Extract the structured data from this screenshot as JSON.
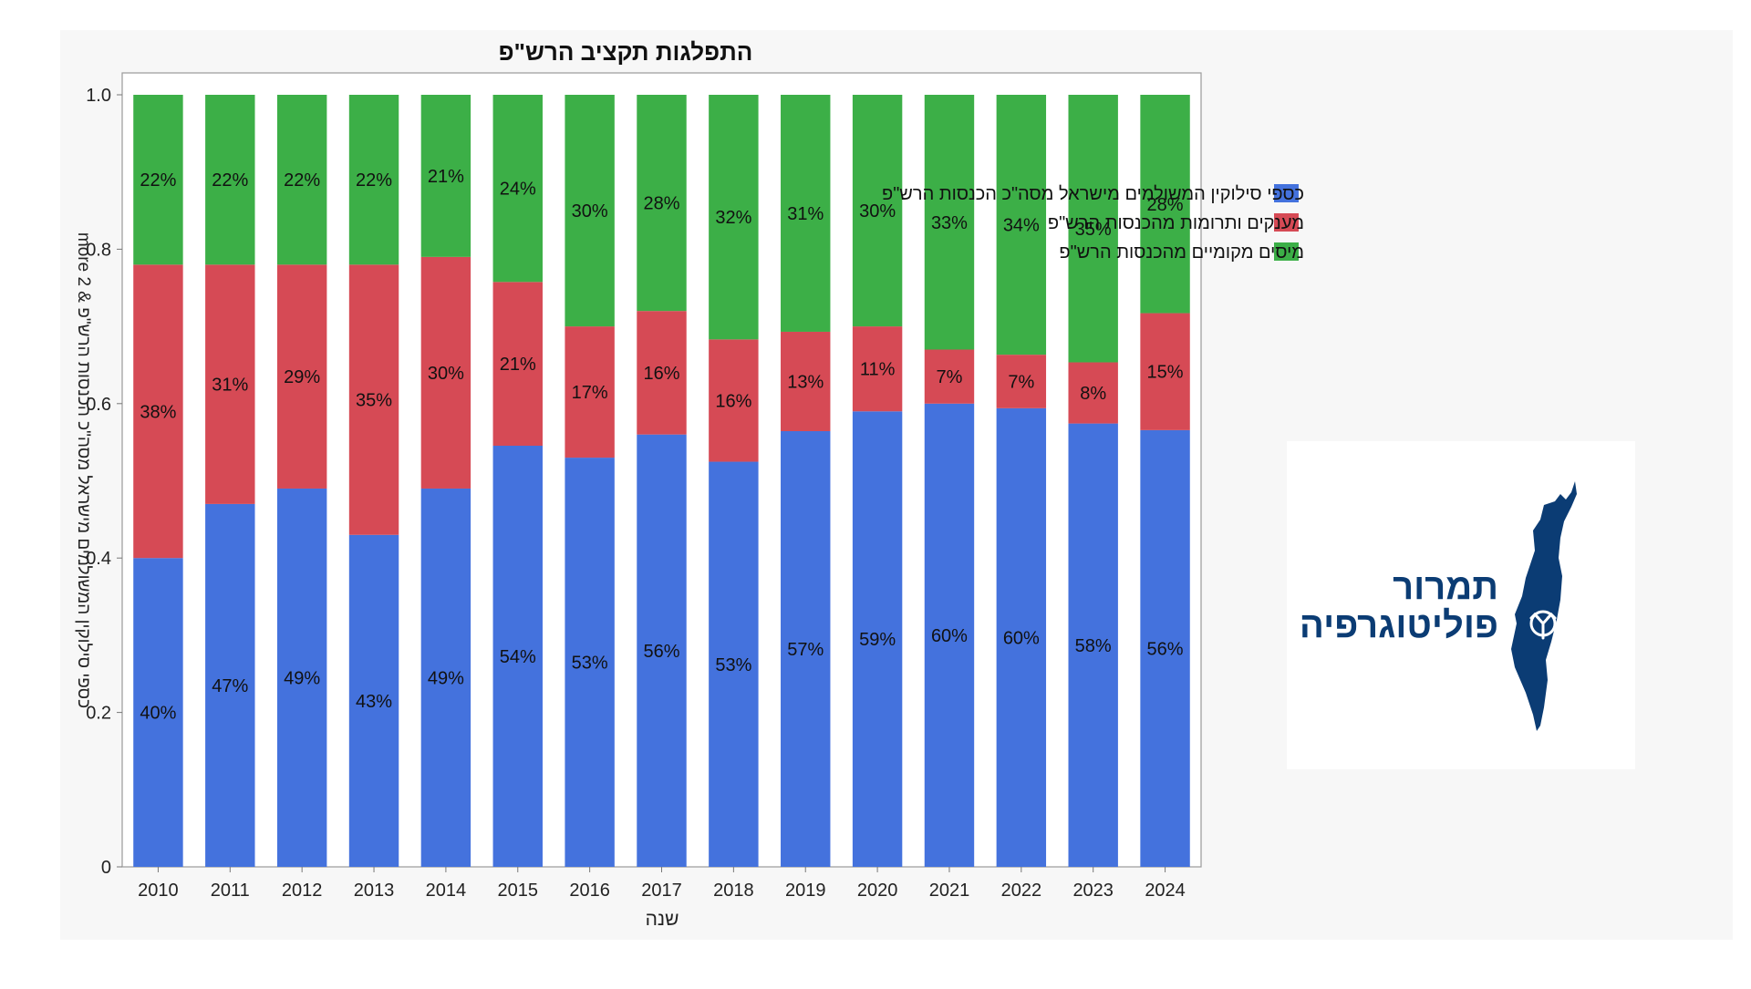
{
  "chart_data": {
    "type": "bar",
    "stacked": true,
    "normalized": true,
    "title": "התפלגות תקציב הרש\"פ",
    "xlabel": "שנה",
    "ylabel": "כספי סילוקין המשולמים מישראל מסה\"כ הכנסות הרש\"פ & 2 more",
    "ylim": [
      0,
      1.0
    ],
    "yticks": [
      "0",
      "0.2",
      "0.4",
      "0.6",
      "0.8",
      "1.0"
    ],
    "ytick_values": [
      0,
      0.2,
      0.4,
      0.6,
      0.8,
      1.0
    ],
    "categories": [
      "2010",
      "2011",
      "2012",
      "2013",
      "2014",
      "2015",
      "2016",
      "2017",
      "2018",
      "2019",
      "2020",
      "2021",
      "2022",
      "2023",
      "2024"
    ],
    "series": [
      {
        "name": "כספי סילוקין המשולמים מישראל מסה\"כ הכנסות הרש\"פ",
        "color": "#4472dd",
        "values": [
          0.4,
          0.47,
          0.49,
          0.43,
          0.49,
          0.54,
          0.53,
          0.56,
          0.53,
          0.57,
          0.59,
          0.6,
          0.6,
          0.58,
          0.56
        ],
        "labels": [
          "40%",
          "47%",
          "49%",
          "43%",
          "49%",
          "54%",
          "53%",
          "56%",
          "53%",
          "57%",
          "59%",
          "60%",
          "60%",
          "58%",
          "56%"
        ]
      },
      {
        "name": "מענקים ותרומות מהכנסות הרש\"פ",
        "color": "#d64a55",
        "values": [
          0.38,
          0.31,
          0.29,
          0.35,
          0.3,
          0.21,
          0.17,
          0.16,
          0.16,
          0.13,
          0.11,
          0.07,
          0.07,
          0.08,
          0.15
        ],
        "labels": [
          "38%",
          "31%",
          "29%",
          "35%",
          "30%",
          "21%",
          "17%",
          "16%",
          "16%",
          "13%",
          "11%",
          "7%",
          "7%",
          "8%",
          "15%"
        ]
      },
      {
        "name": "מיסים מקומיים מהכנסות הרש\"פ",
        "color": "#3caf47",
        "values": [
          0.22,
          0.22,
          0.22,
          0.22,
          0.21,
          0.24,
          0.3,
          0.28,
          0.32,
          0.31,
          0.3,
          0.33,
          0.34,
          0.35,
          0.28
        ],
        "labels": [
          "22%",
          "22%",
          "22%",
          "22%",
          "21%",
          "24%",
          "30%",
          "28%",
          "32%",
          "31%",
          "30%",
          "33%",
          "34%",
          "35%",
          "28%"
        ]
      }
    ],
    "legend_position": "right"
  },
  "logo": {
    "line1": "תמרור",
    "line2": "פוליטוגרפיה",
    "primary_color": "#0b3c74"
  }
}
